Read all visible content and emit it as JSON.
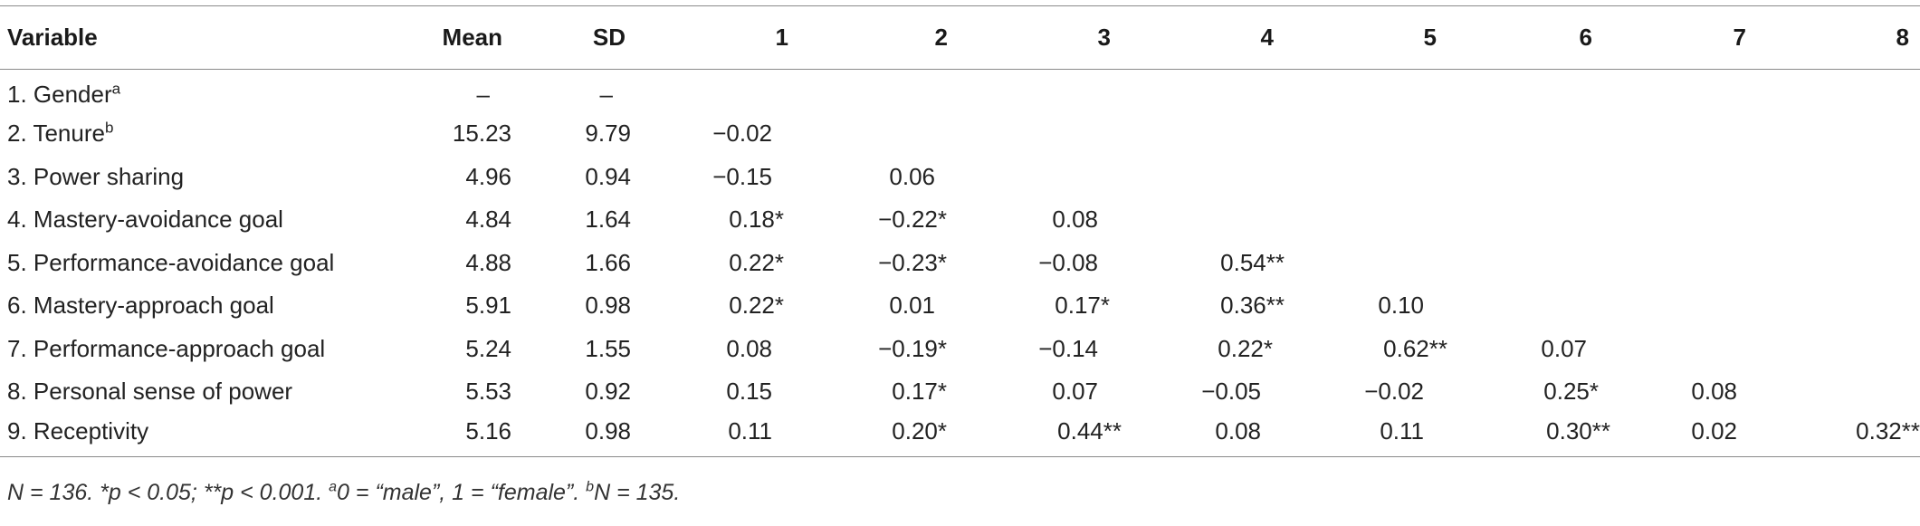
{
  "table": {
    "headers": [
      "Variable",
      "Mean",
      "SD",
      "1",
      "2",
      "3",
      "4",
      "5",
      "6",
      "7",
      "8"
    ],
    "rows": [
      {
        "variable": "1. Gender",
        "sup": "a",
        "mean": "–",
        "sd": "–",
        "cells": [
          "",
          "",
          "",
          "",
          "",
          "",
          "",
          ""
        ]
      },
      {
        "variable": "2. Tenure",
        "sup": "b",
        "mean": "15.23",
        "sd": "9.79",
        "cells": [
          "−0.02",
          "",
          "",
          "",
          "",
          "",
          "",
          ""
        ]
      },
      {
        "variable": "3. Power sharing",
        "sup": "",
        "mean": "4.96",
        "sd": "0.94",
        "cells": [
          "−0.15",
          "0.06",
          "",
          "",
          "",
          "",
          "",
          ""
        ]
      },
      {
        "variable": "4. Mastery-avoidance goal",
        "sup": "",
        "mean": "4.84",
        "sd": "1.64",
        "cells": [
          "0.18*",
          "−0.22*",
          "0.08",
          "",
          "",
          "",
          "",
          ""
        ]
      },
      {
        "variable": "5. Performance-avoidance goal",
        "sup": "",
        "mean": "4.88",
        "sd": "1.66",
        "cells": [
          "0.22*",
          "−0.23*",
          "−0.08",
          "0.54**",
          "",
          "",
          "",
          ""
        ]
      },
      {
        "variable": "6. Mastery-approach goal",
        "sup": "",
        "mean": "5.91",
        "sd": "0.98",
        "cells": [
          "0.22*",
          "0.01",
          "0.17*",
          "0.36**",
          "0.10",
          "",
          "",
          ""
        ]
      },
      {
        "variable": "7. Performance-approach goal",
        "sup": "",
        "mean": "5.24",
        "sd": "1.55",
        "cells": [
          "0.08",
          "−0.19*",
          "−0.14",
          "0.22*",
          "0.62**",
          "0.07",
          "",
          ""
        ]
      },
      {
        "variable": "8. Personal sense of power",
        "sup": "",
        "mean": "5.53",
        "sd": "0.92",
        "cells": [
          "0.15",
          "0.17*",
          "0.07",
          "−0.05",
          "−0.02",
          "0.25*",
          "0.08",
          ""
        ]
      },
      {
        "variable": "9. Receptivity",
        "sup": "",
        "mean": "5.16",
        "sd": "0.98",
        "cells": [
          "0.11",
          "0.20*",
          "0.44**",
          "0.08",
          "0.11",
          "0.30**",
          "0.02",
          "0.32**"
        ]
      }
    ]
  },
  "note": {
    "part1": "N = 136. *p < 0.05; **p < 0.001. ",
    "sup_a": "a",
    "part2": "0 = “male”, 1 = “female”. ",
    "sup_b": "b",
    "part3": "N = 135."
  }
}
